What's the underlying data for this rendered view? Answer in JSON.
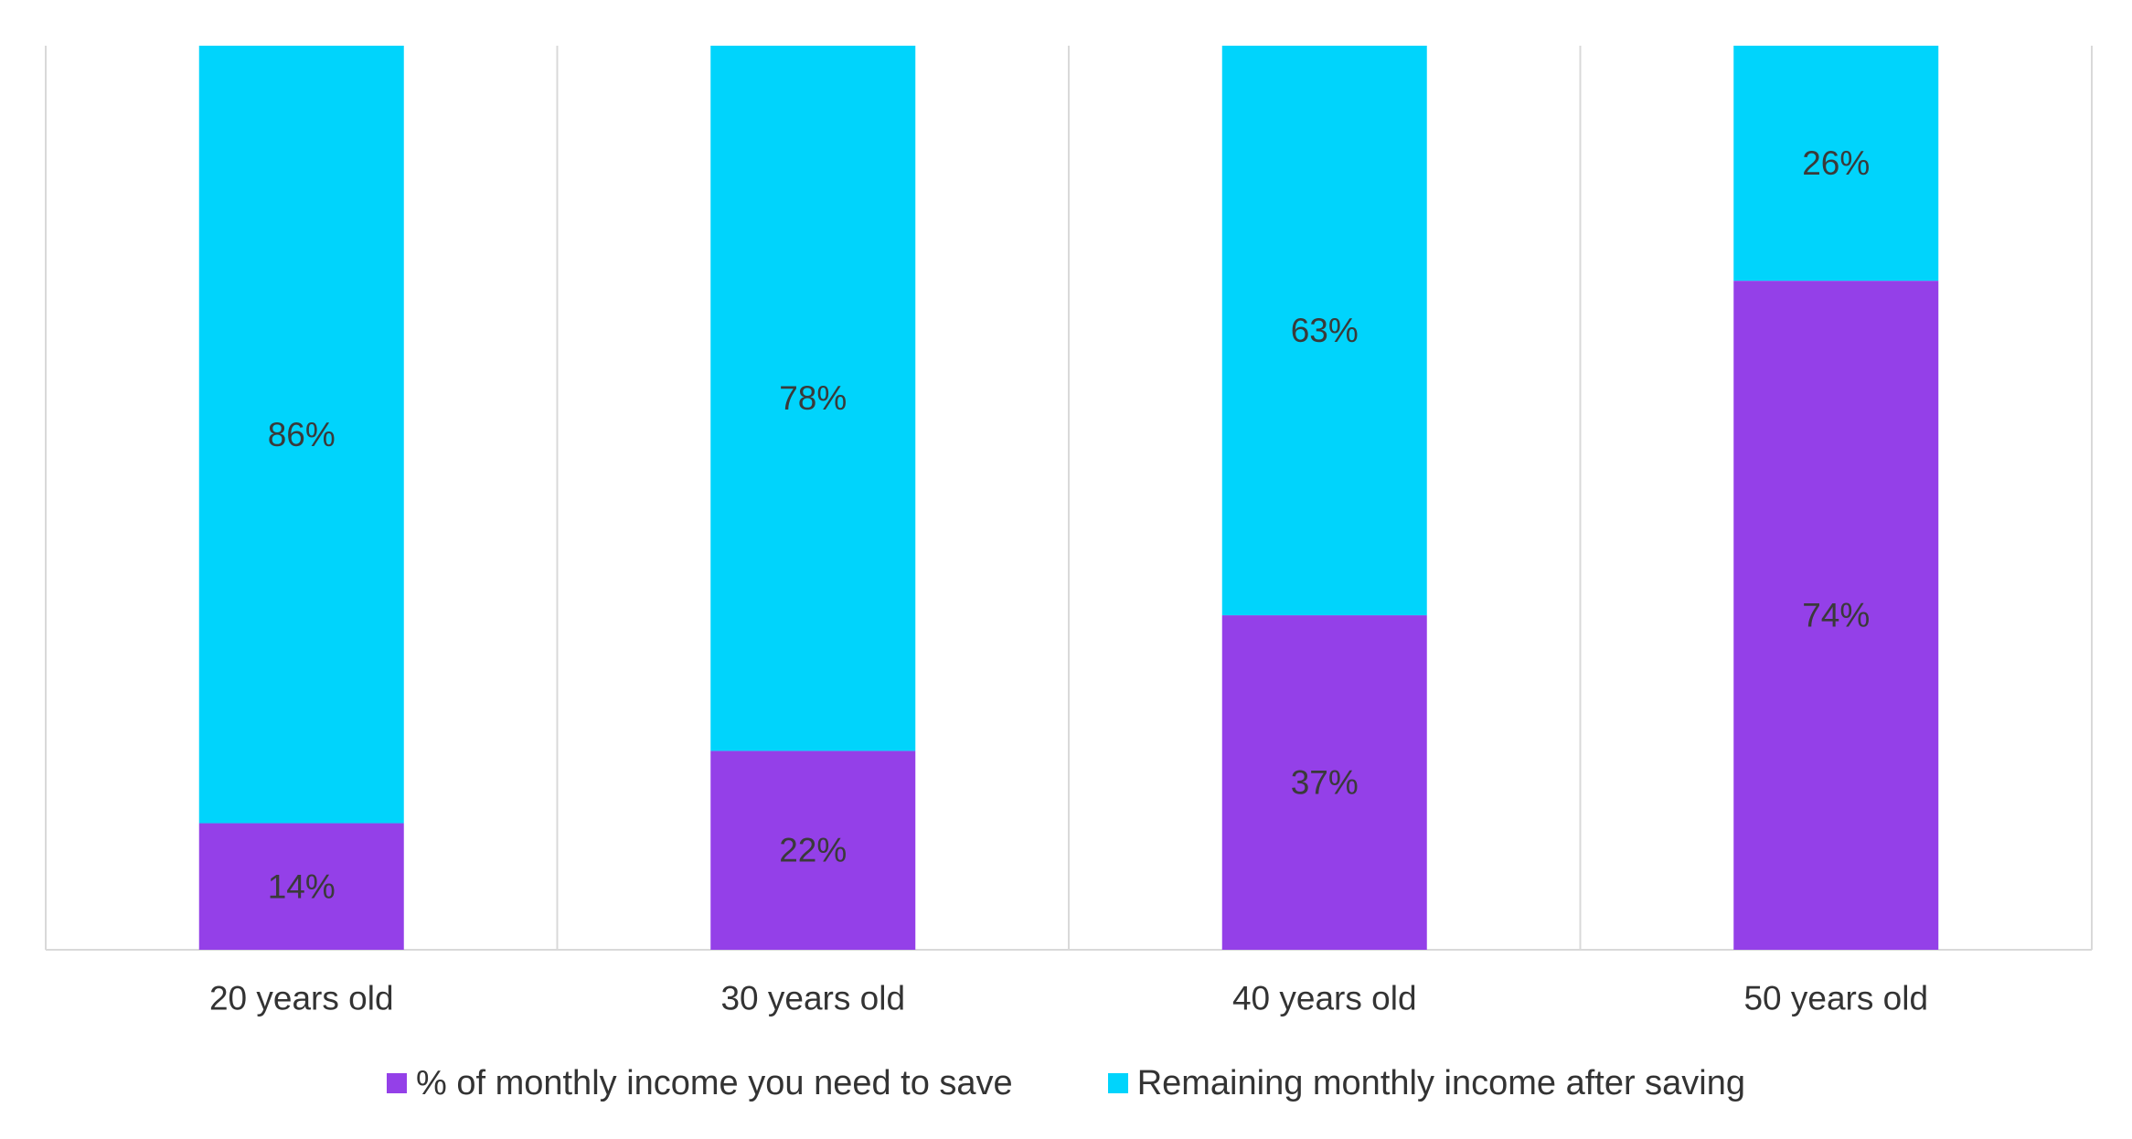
{
  "chart_data": {
    "type": "bar",
    "stacked": true,
    "percent_stacked": true,
    "title": "",
    "xlabel": "",
    "ylabel": "",
    "ylim": [
      0,
      100
    ],
    "grid": "vertical separators between categories",
    "legend_position": "bottom",
    "categories": [
      "20 years old",
      "30 years old",
      "40 years old",
      "50 years old"
    ],
    "series": [
      {
        "name": "% of monthly income you need to save",
        "color": "#9440e8",
        "values": [
          14,
          22,
          37,
          74
        ],
        "labels": [
          "14%",
          "22%",
          "37%",
          "74%"
        ]
      },
      {
        "name": "Remaining monthly income after saving",
        "color": "#00d4fc",
        "values": [
          86,
          78,
          63,
          26
        ],
        "labels": [
          "86%",
          "78%",
          "63%",
          "26%"
        ]
      }
    ]
  }
}
